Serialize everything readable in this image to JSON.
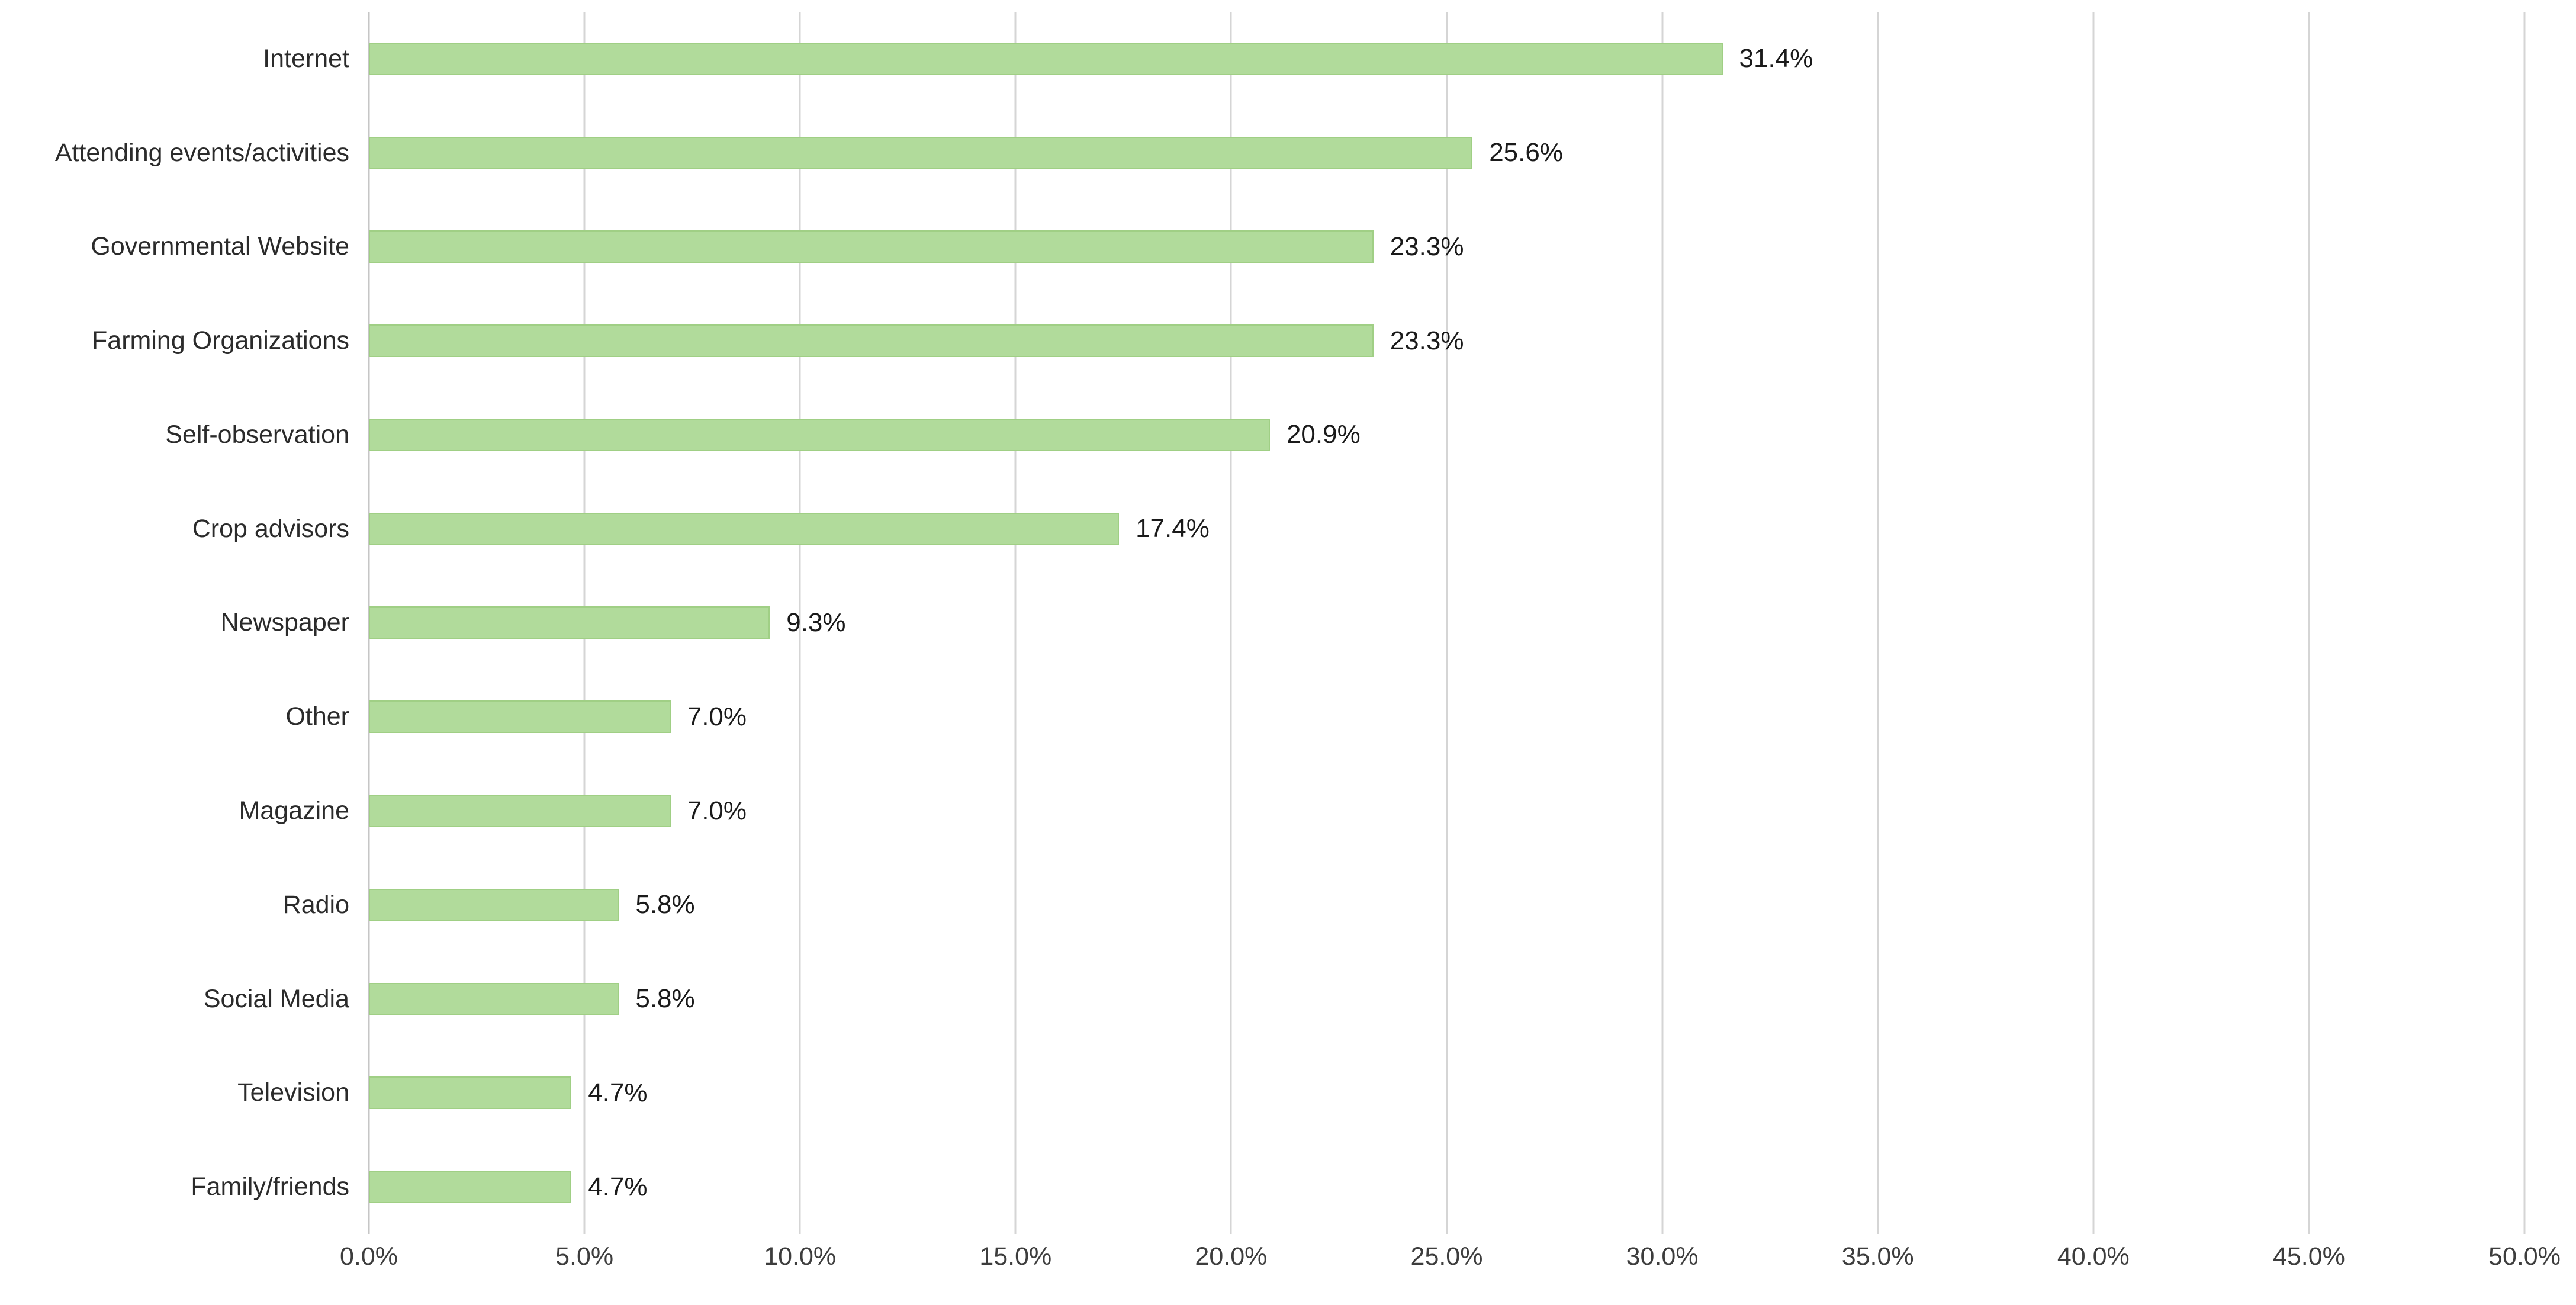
{
  "chart_data": {
    "type": "bar",
    "orientation": "horizontal",
    "title": "",
    "xlabel": "",
    "ylabel": "",
    "categories": [
      "Internet",
      "Attending events/activities",
      "Governmental Website",
      "Farming Organizations",
      "Self-observation",
      "Crop advisors",
      "Newspaper",
      "Other",
      "Magazine",
      "Radio",
      "Social Media",
      "Television",
      "Family/friends"
    ],
    "values": [
      31.4,
      25.6,
      23.3,
      23.3,
      20.9,
      17.4,
      9.3,
      7.0,
      7.0,
      5.8,
      5.8,
      4.7,
      4.7
    ],
    "value_labels": [
      "31.4%",
      "25.6%",
      "23.3%",
      "23.3%",
      "20.9%",
      "17.4%",
      "9.3%",
      "7.0%",
      "7.0%",
      "5.8%",
      "5.8%",
      "4.7%",
      "4.7%"
    ],
    "xlim": [
      0,
      50
    ],
    "x_ticks": [
      0,
      5,
      10,
      15,
      20,
      25,
      30,
      35,
      40,
      45,
      50
    ],
    "x_tick_labels": [
      "0.0%",
      "5.0%",
      "10.0%",
      "15.0%",
      "20.0%",
      "25.0%",
      "30.0%",
      "35.0%",
      "40.0%",
      "45.0%",
      "50.0%"
    ],
    "grid": "vertical-only",
    "legend": "none",
    "colors": {
      "bar_fill": "#B1DB9B",
      "bar_border": "#A0CF85",
      "gridline": "#D5D5D5",
      "zero_line": "#C6C6C6",
      "category_text": "#2B2B2B",
      "value_text": "#1A1A1A",
      "tick_text": "#3D3D3D",
      "background": "#FFFFFF"
    }
  }
}
